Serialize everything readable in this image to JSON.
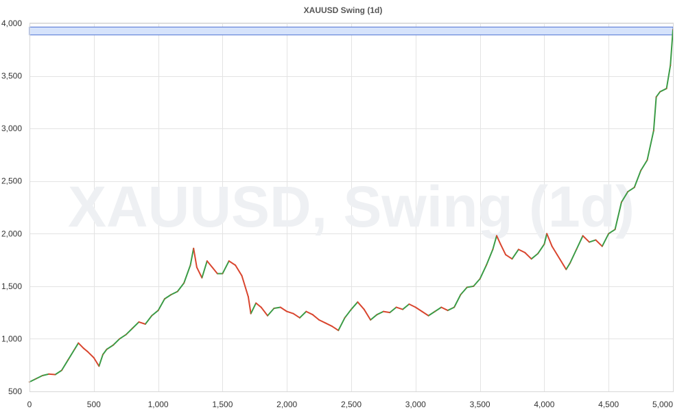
{
  "chart_data": {
    "type": "line",
    "title": "XAUUSD Swing (1d)",
    "watermark": "XAUUSD, Swing (1d)",
    "xlabel": "",
    "ylabel": "",
    "xlim": [
      0,
      5000
    ],
    "ylim": [
      500,
      4000
    ],
    "x_ticks": [
      0,
      500,
      1000,
      1500,
      2000,
      2500,
      3000,
      3500,
      4000,
      4500,
      5000
    ],
    "x_tick_labels": [
      "0",
      "500",
      "1,000",
      "1,500",
      "2,000",
      "2,500",
      "3,000",
      "3,500",
      "4,000",
      "4,500",
      "5,000"
    ],
    "y_ticks": [
      500,
      1000,
      1500,
      2000,
      2500,
      3000,
      3500,
      4000
    ],
    "y_tick_labels": [
      "500",
      "1,000",
      "1,500",
      "2,000",
      "2,500",
      "3,000",
      "3,500",
      "4,000"
    ],
    "grid": true,
    "colors": {
      "up": "#3a9b45",
      "down": "#d9452e",
      "zone_fill": "#d6e3fb",
      "zone_stroke": "#4a6fd1",
      "grid": "#e3e3e3"
    },
    "zone": {
      "x_start": 0,
      "x_end": 5000,
      "y_low": 3890,
      "y_high": 3965
    },
    "series": [
      {
        "values": [
          [
            0,
            590
          ],
          [
            50,
            620
          ],
          [
            100,
            650
          ],
          [
            150,
            665
          ],
          [
            200,
            660
          ],
          [
            250,
            700
          ],
          [
            300,
            800
          ],
          [
            350,
            900
          ],
          [
            380,
            960
          ],
          [
            420,
            910
          ],
          [
            450,
            880
          ],
          [
            500,
            820
          ],
          [
            540,
            740
          ],
          [
            570,
            850
          ],
          [
            600,
            900
          ],
          [
            650,
            940
          ],
          [
            700,
            1000
          ],
          [
            750,
            1040
          ],
          [
            800,
            1100
          ],
          [
            850,
            1160
          ],
          [
            900,
            1140
          ],
          [
            950,
            1220
          ],
          [
            1000,
            1270
          ],
          [
            1050,
            1380
          ],
          [
            1100,
            1420
          ],
          [
            1150,
            1450
          ],
          [
            1200,
            1530
          ],
          [
            1250,
            1700
          ],
          [
            1275,
            1860
          ],
          [
            1300,
            1680
          ],
          [
            1340,
            1580
          ],
          [
            1380,
            1740
          ],
          [
            1420,
            1680
          ],
          [
            1460,
            1620
          ],
          [
            1500,
            1620
          ],
          [
            1550,
            1740
          ],
          [
            1600,
            1700
          ],
          [
            1650,
            1600
          ],
          [
            1700,
            1400
          ],
          [
            1720,
            1240
          ],
          [
            1760,
            1340
          ],
          [
            1800,
            1300
          ],
          [
            1850,
            1220
          ],
          [
            1900,
            1290
          ],
          [
            1950,
            1300
          ],
          [
            2000,
            1260
          ],
          [
            2050,
            1240
          ],
          [
            2100,
            1200
          ],
          [
            2150,
            1260
          ],
          [
            2200,
            1230
          ],
          [
            2250,
            1180
          ],
          [
            2300,
            1150
          ],
          [
            2350,
            1120
          ],
          [
            2400,
            1080
          ],
          [
            2450,
            1200
          ],
          [
            2500,
            1280
          ],
          [
            2550,
            1350
          ],
          [
            2600,
            1280
          ],
          [
            2650,
            1180
          ],
          [
            2700,
            1230
          ],
          [
            2750,
            1260
          ],
          [
            2800,
            1250
          ],
          [
            2850,
            1300
          ],
          [
            2900,
            1280
          ],
          [
            2950,
            1330
          ],
          [
            3000,
            1300
          ],
          [
            3050,
            1260
          ],
          [
            3100,
            1220
          ],
          [
            3150,
            1260
          ],
          [
            3200,
            1300
          ],
          [
            3250,
            1270
          ],
          [
            3300,
            1300
          ],
          [
            3350,
            1420
          ],
          [
            3400,
            1490
          ],
          [
            3450,
            1500
          ],
          [
            3500,
            1570
          ],
          [
            3550,
            1700
          ],
          [
            3600,
            1850
          ],
          [
            3630,
            1980
          ],
          [
            3660,
            1900
          ],
          [
            3700,
            1800
          ],
          [
            3750,
            1760
          ],
          [
            3800,
            1850
          ],
          [
            3850,
            1820
          ],
          [
            3900,
            1760
          ],
          [
            3950,
            1810
          ],
          [
            4000,
            1900
          ],
          [
            4020,
            2000
          ],
          [
            4060,
            1880
          ],
          [
            4100,
            1800
          ],
          [
            4150,
            1700
          ],
          [
            4170,
            1660
          ],
          [
            4200,
            1720
          ],
          [
            4250,
            1850
          ],
          [
            4300,
            1980
          ],
          [
            4350,
            1920
          ],
          [
            4400,
            1940
          ],
          [
            4450,
            1880
          ],
          [
            4500,
            2000
          ],
          [
            4550,
            2040
          ],
          [
            4600,
            2300
          ],
          [
            4650,
            2400
          ],
          [
            4700,
            2440
          ],
          [
            4750,
            2600
          ],
          [
            4800,
            2700
          ],
          [
            4850,
            2980
          ],
          [
            4870,
            3300
          ],
          [
            4900,
            3350
          ],
          [
            4950,
            3380
          ],
          [
            4980,
            3600
          ],
          [
            5000,
            3940
          ]
        ]
      }
    ]
  }
}
